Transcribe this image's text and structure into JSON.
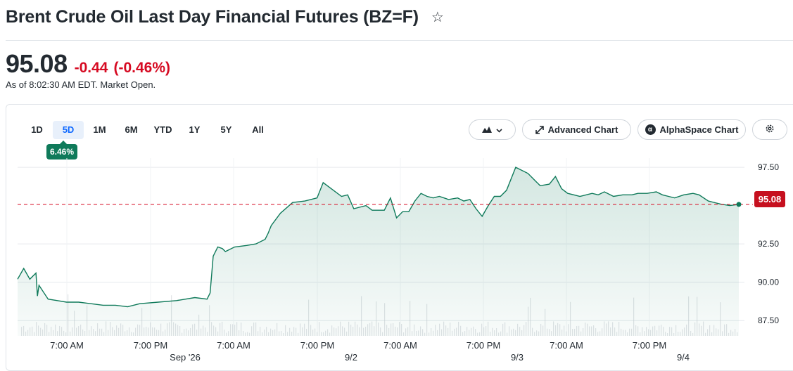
{
  "header": {
    "title": "Brent Crude Oil Last Day Financial Futures (BZ=F)",
    "star_icon": "star-icon"
  },
  "quote": {
    "price": "95.08",
    "change": "-0.44",
    "change_pct": "(-0.46%)",
    "as_of": "As of 8:02:30 AM EDT. Market Open.",
    "change_color": "#d60a22"
  },
  "toolbar": {
    "ranges": [
      "1D",
      "5D",
      "1M",
      "6M",
      "YTD",
      "1Y",
      "5Y",
      "All"
    ],
    "active_range": "5D",
    "range_change": "6.46%",
    "chart_type_icon": "mountain-chart-icon",
    "advanced_chart_label": "Advanced Chart",
    "alphaspace_label": "AlphaSpace Chart",
    "settings_icon": "gear-icon"
  },
  "chart_data": {
    "type": "area",
    "title": "",
    "xlabel": "",
    "ylabel": "",
    "ylim": [
      86.5,
      98.1
    ],
    "y_ticks": [
      "97.50",
      "92.50",
      "90.00",
      "87.50"
    ],
    "x_tick_labels": [
      "7:00 AM",
      "7:00 PM",
      "7:00 AM",
      "7:00 PM",
      "7:00 AM",
      "7:00 PM",
      "7:00 AM",
      "7:00 PM"
    ],
    "date_labels": [
      "Sep '26",
      "9/2",
      "9/3",
      "9/4"
    ],
    "reference_price": 95.08,
    "reference_label": "95.08",
    "line_color": "#0f7a5a",
    "reference_color": "#d60a22",
    "grid": true,
    "series": [
      {
        "x": [
          0,
          4,
          8,
          12,
          13,
          14,
          20,
          26,
          32,
          40,
          48,
          56,
          64,
          72,
          80,
          92,
          104,
          116,
          124,
          126,
          128,
          131,
          134,
          136,
          142,
          150,
          156,
          162,
          164,
          166,
          172,
          180,
          188,
          196,
          200,
          204,
          212,
          216,
          220,
          228,
          232,
          240,
          244,
          248,
          252,
          256,
          260,
          264,
          268,
          272,
          276,
          282,
          288,
          292,
          296,
          300,
          304,
          308,
          312,
          316,
          320,
          326,
          334,
          342,
          348,
          352,
          356,
          360,
          364,
          368,
          376,
          380,
          384,
          390,
          396,
          402,
          406,
          412,
          418,
          422,
          426,
          430,
          436,
          442,
          446,
          452,
          460,
          466,
          472
        ],
        "values": [
          90.2,
          90.9,
          90.2,
          90.6,
          89.1,
          89.8,
          88.9,
          88.8,
          88.7,
          88.7,
          88.6,
          88.5,
          88.5,
          88.4,
          88.6,
          88.7,
          88.8,
          89.0,
          88.9,
          89.3,
          91.7,
          92.3,
          92.2,
          92.0,
          92.3,
          92.4,
          92.5,
          92.8,
          93.2,
          93.7,
          94.5,
          95.2,
          95.3,
          95.5,
          96.5,
          96.2,
          95.6,
          95.7,
          94.8,
          95.0,
          94.7,
          94.7,
          95.5,
          94.2,
          94.6,
          94.6,
          95.3,
          95.8,
          95.6,
          95.5,
          95.6,
          95.4,
          95.5,
          95.3,
          95.4,
          94.8,
          94.3,
          95.0,
          95.6,
          95.6,
          96.0,
          97.5,
          97.1,
          96.3,
          96.4,
          96.9,
          96.1,
          95.8,
          95.7,
          95.6,
          95.8,
          95.7,
          95.9,
          95.6,
          95.7,
          95.7,
          95.8,
          95.8,
          95.9,
          95.7,
          95.6,
          95.5,
          95.7,
          95.8,
          95.7,
          95.3,
          95.1,
          95.0,
          95.08
        ]
      }
    ]
  }
}
